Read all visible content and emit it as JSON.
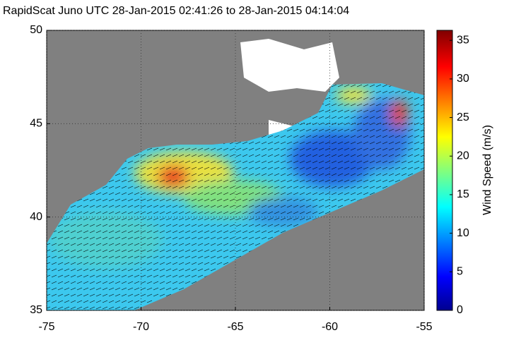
{
  "map": {
    "title": "RapidScat Juno UTC 28-Jan-2015 02:41:26 to 28-Jan-2015 04:14:04",
    "xlim": [
      -75,
      -55
    ],
    "xticks": [
      -75,
      -70,
      -65,
      -60,
      -55
    ],
    "ylim": [
      35,
      50
    ],
    "yticks": [
      35,
      40,
      45,
      50
    ],
    "colorbar": {
      "label": "Wind Speed (m/s)",
      "clim": [
        0,
        36.3
      ],
      "ticks": [
        0,
        5,
        10,
        15,
        20,
        25,
        30,
        35
      ]
    },
    "grid": true
  }
}
